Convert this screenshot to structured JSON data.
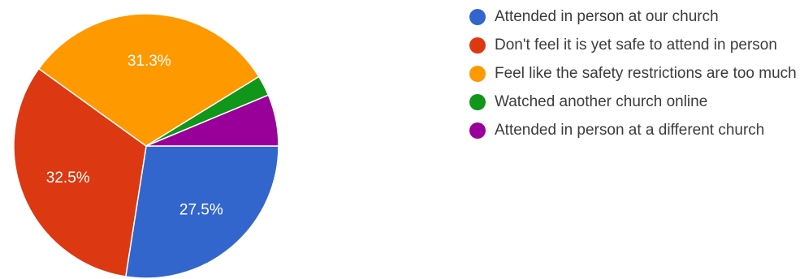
{
  "chart_data": {
    "type": "pie",
    "categories": [
      "Attended in person at our church",
      "Don't feel it is yet safe to attend in person",
      "Feel like the safety restrictions are too much",
      "Watched another church online",
      "Attended in person at a different church"
    ],
    "values": [
      27.5,
      32.5,
      31.3,
      2.5,
      6.3
    ],
    "slice_labels": [
      "27.5%",
      "32.5%",
      "31.3%",
      "",
      ""
    ],
    "colors": [
      "#3366cc",
      "#dc3912",
      "#ff9900",
      "#109618",
      "#990099"
    ],
    "legend": "right"
  },
  "legend": {
    "items": [
      {
        "label": "Attended in person at our church",
        "color": "#3366cc"
      },
      {
        "label": "Don't feel it is yet safe to attend in person",
        "color": "#dc3912"
      },
      {
        "label": "Feel like the safety restrictions are too much",
        "color": "#ff9900"
      },
      {
        "label": "Watched another church online",
        "color": "#109618"
      },
      {
        "label": "Attended in person at a different church",
        "color": "#990099"
      }
    ]
  }
}
